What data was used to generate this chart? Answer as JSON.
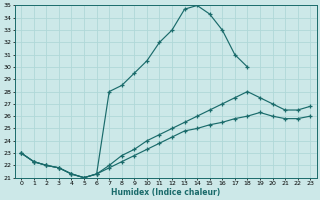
{
  "xlabel": "Humidex (Indice chaleur)",
  "xlim": [
    -0.5,
    23.5
  ],
  "ylim": [
    21,
    35
  ],
  "xticks": [
    0,
    1,
    2,
    3,
    4,
    5,
    6,
    7,
    8,
    9,
    10,
    11,
    12,
    13,
    14,
    15,
    16,
    17,
    18,
    19,
    20,
    21,
    22,
    23
  ],
  "yticks": [
    21,
    22,
    23,
    24,
    25,
    26,
    27,
    28,
    29,
    30,
    31,
    32,
    33,
    34,
    35
  ],
  "bg_color": "#cce8e8",
  "grid_color": "#b0d8d8",
  "line_color": "#1a6b6b",
  "line1_x": [
    0,
    1,
    2,
    3,
    4,
    5,
    6,
    7,
    8,
    9,
    10,
    11,
    12,
    13,
    14,
    15,
    16,
    17,
    18,
    19,
    20,
    21,
    22,
    23
  ],
  "line1_y": [
    23.0,
    22.3,
    22.0,
    21.8,
    21.3,
    21.0,
    21.3,
    28.0,
    28.5,
    29.5,
    30.5,
    32.0,
    33.0,
    34.7,
    35.0,
    34.3,
    33.0,
    31.0,
    30.0,
    null,
    null,
    null,
    null,
    null
  ],
  "line2_x": [
    0,
    1,
    2,
    3,
    4,
    5,
    6,
    7,
    8,
    9,
    10,
    11,
    12,
    13,
    14,
    15,
    16,
    17,
    18,
    19,
    20,
    21,
    22,
    23
  ],
  "line2_y": [
    23.0,
    22.3,
    22.0,
    21.8,
    21.3,
    21.0,
    21.3,
    22.0,
    22.8,
    23.3,
    24.0,
    24.5,
    25.0,
    25.5,
    26.0,
    26.5,
    27.0,
    27.5,
    28.0,
    27.5,
    27.0,
    26.5,
    26.5,
    26.8
  ],
  "line3_x": [
    0,
    1,
    2,
    3,
    4,
    5,
    6,
    7,
    8,
    9,
    10,
    11,
    12,
    13,
    14,
    15,
    16,
    17,
    18,
    19,
    20,
    21,
    22,
    23
  ],
  "line3_y": [
    23.0,
    22.3,
    22.0,
    21.8,
    21.3,
    21.0,
    21.3,
    21.8,
    22.3,
    22.8,
    23.3,
    23.8,
    24.3,
    24.8,
    25.0,
    25.3,
    25.5,
    25.8,
    26.0,
    26.3,
    26.0,
    25.8,
    25.8,
    26.0
  ]
}
